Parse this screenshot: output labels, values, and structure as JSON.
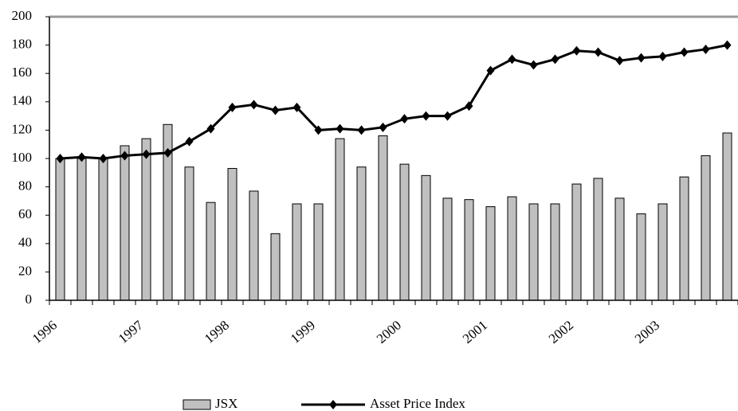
{
  "chart_data": {
    "type": "bar_line",
    "categories": [
      "1996",
      null,
      null,
      null,
      "1997",
      null,
      null,
      null,
      "1998",
      null,
      null,
      null,
      "1999",
      null,
      null,
      null,
      "2000",
      null,
      null,
      null,
      "2001",
      null,
      null,
      null,
      "2002",
      null,
      null,
      null,
      "2003",
      null,
      null,
      null
    ],
    "series": [
      {
        "name": "JSX",
        "type": "bar",
        "color": "#c0c0c0",
        "values": [
          100,
          100,
          100,
          109,
          114,
          124,
          94,
          69,
          93,
          77,
          47,
          68,
          68,
          114,
          94,
          116,
          96,
          88,
          72,
          71,
          66,
          73,
          68,
          68,
          82,
          86,
          72,
          61,
          68,
          87,
          102,
          118
        ]
      },
      {
        "name": "Asset Price Index",
        "type": "line",
        "color": "#000000",
        "values": [
          100,
          101,
          100,
          102,
          103,
          104,
          112,
          121,
          136,
          138,
          134,
          136,
          120,
          121,
          120,
          122,
          128,
          130,
          130,
          137,
          162,
          170,
          166,
          170,
          176,
          175,
          169,
          171,
          172,
          175,
          177,
          180
        ]
      }
    ],
    "ylim": [
      0,
      200
    ],
    "yticks": [
      0,
      20,
      40,
      60,
      80,
      100,
      120,
      140,
      160,
      180,
      200
    ],
    "grid": false,
    "legend": "bottom"
  }
}
